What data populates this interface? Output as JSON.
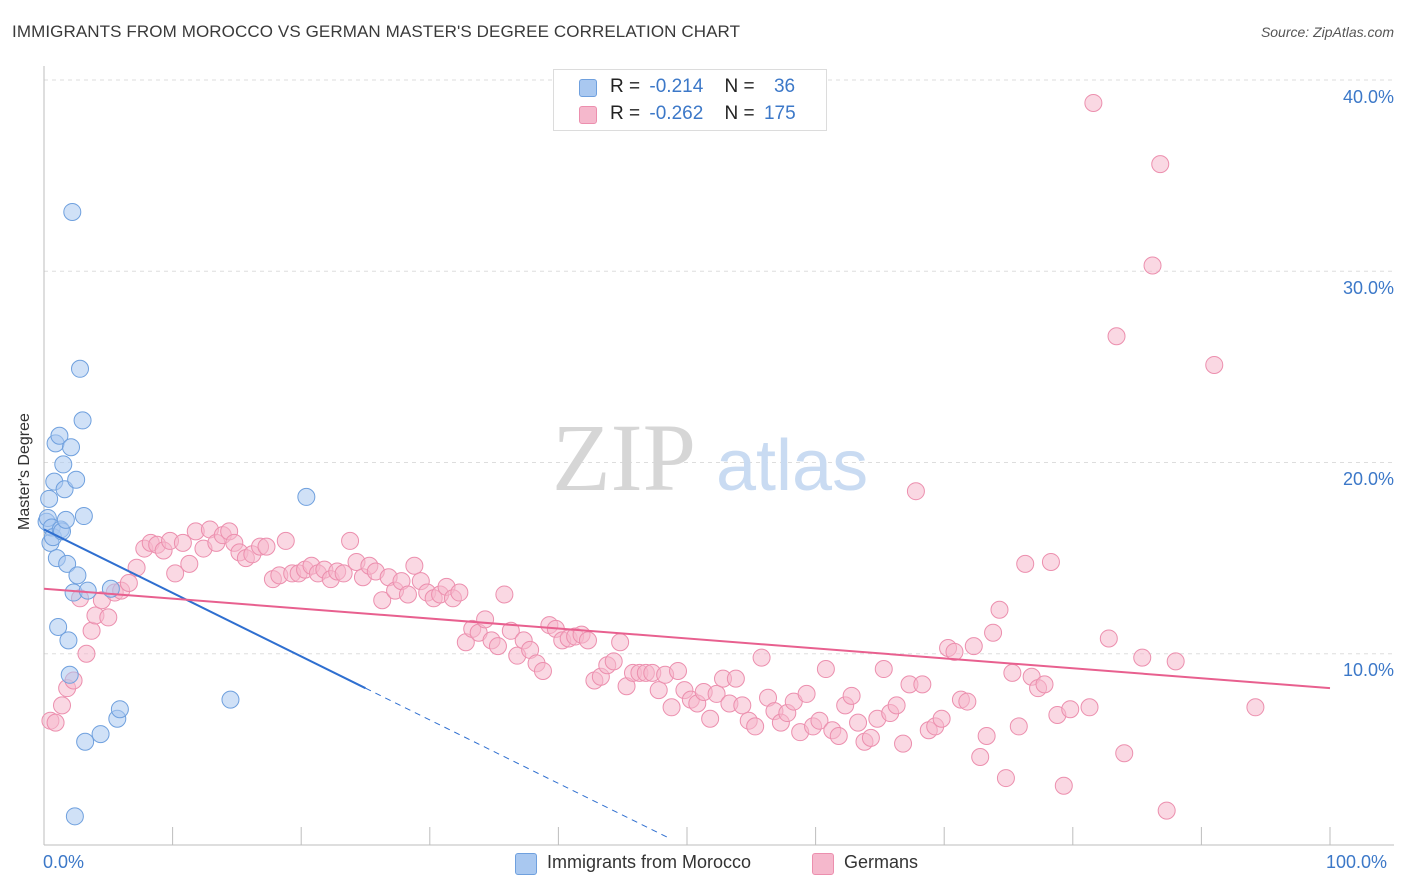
{
  "title": "IMMIGRANTS FROM MOROCCO VS GERMAN MASTER'S DEGREE CORRELATION CHART",
  "source": "Source: ZipAtlas.com",
  "watermark": {
    "zip": "ZIP",
    "atlas": "atlas"
  },
  "legend": {
    "rows": [
      {
        "r_label": "R =",
        "r_value": "-0.214",
        "n_label": "N =",
        "n_value": "36",
        "color": "#a9c8f0"
      },
      {
        "r_label": "R =",
        "r_value": "-0.262",
        "n_label": "N =",
        "n_value": "175",
        "color": "#f5b8cc"
      }
    ]
  },
  "bottom_legend": [
    {
      "label": "Immigrants from Morocco",
      "color": "#a9c8f0"
    },
    {
      "label": "Germans",
      "color": "#f5b8cc"
    }
  ],
  "colors": {
    "blue_fill": "#a9c8f0",
    "blue_stroke": "#6fa0de",
    "blue_line": "#2f6fd0",
    "pink_fill": "#f5b8cc",
    "pink_stroke": "#ec8fae",
    "pink_line": "#e8608f",
    "tick_text": "#3c78c8",
    "grid": "#dddddd"
  },
  "chart_data": {
    "type": "scatter",
    "title": "IMMIGRANTS FROM MOROCCO VS GERMAN MASTER'S DEGREE CORRELATION CHART",
    "xlabel": "",
    "ylabel": "Master's Degree",
    "xlim": [
      0,
      100
    ],
    "ylim": [
      0,
      40
    ],
    "x_tick_labels": [
      "0.0%",
      "100.0%"
    ],
    "y_ticks": [
      10,
      20,
      30,
      40
    ],
    "y_tick_labels": [
      "10.0%",
      "20.0%",
      "30.0%",
      "40.0%"
    ],
    "grid": true,
    "legend_position": "top-center",
    "series": [
      {
        "name": "Immigrants from Morocco",
        "trend": {
          "x0": 0,
          "y0": 16.5,
          "x1": 25,
          "y1": 8.2,
          "dashed_to_x": 48.5
        },
        "points": [
          [
            0.2,
            16.9
          ],
          [
            0.3,
            17.1
          ],
          [
            0.4,
            18.1
          ],
          [
            0.5,
            15.8
          ],
          [
            0.6,
            16.6
          ],
          [
            0.7,
            16.1
          ],
          [
            0.8,
            19.0
          ],
          [
            0.9,
            21.0
          ],
          [
            1.0,
            15.0
          ],
          [
            1.1,
            11.4
          ],
          [
            1.2,
            21.4
          ],
          [
            1.3,
            16.5
          ],
          [
            1.4,
            16.4
          ],
          [
            1.5,
            19.9
          ],
          [
            1.6,
            18.6
          ],
          [
            1.7,
            17.0
          ],
          [
            1.8,
            14.7
          ],
          [
            1.9,
            10.7
          ],
          [
            2.0,
            8.9
          ],
          [
            2.1,
            20.8
          ],
          [
            2.2,
            33.1
          ],
          [
            2.3,
            13.2
          ],
          [
            2.4,
            1.5
          ],
          [
            2.5,
            19.1
          ],
          [
            2.6,
            14.1
          ],
          [
            2.8,
            24.9
          ],
          [
            3.0,
            22.2
          ],
          [
            3.1,
            17.2
          ],
          [
            3.2,
            5.4
          ],
          [
            3.4,
            13.3
          ],
          [
            4.4,
            5.8
          ],
          [
            5.2,
            13.4
          ],
          [
            5.7,
            6.6
          ],
          [
            5.9,
            7.1
          ],
          [
            14.5,
            7.6
          ],
          [
            20.4,
            18.2
          ]
        ]
      },
      {
        "name": "Germans",
        "trend": {
          "x0": 0,
          "y0": 13.4,
          "x1": 100,
          "y1": 8.2
        },
        "points": [
          [
            0.5,
            6.5
          ],
          [
            0.9,
            6.4
          ],
          [
            1.4,
            7.3
          ],
          [
            1.8,
            8.2
          ],
          [
            2.3,
            8.6
          ],
          [
            2.8,
            12.9
          ],
          [
            3.3,
            10.0
          ],
          [
            3.7,
            11.2
          ],
          [
            4.0,
            12.0
          ],
          [
            4.5,
            12.8
          ],
          [
            5.0,
            11.9
          ],
          [
            5.5,
            13.2
          ],
          [
            6.0,
            13.3
          ],
          [
            6.6,
            13.7
          ],
          [
            7.2,
            14.5
          ],
          [
            7.8,
            15.5
          ],
          [
            8.3,
            15.8
          ],
          [
            8.8,
            15.7
          ],
          [
            9.3,
            15.4
          ],
          [
            9.8,
            15.9
          ],
          [
            10.2,
            14.2
          ],
          [
            10.8,
            15.8
          ],
          [
            11.3,
            14.7
          ],
          [
            11.8,
            16.4
          ],
          [
            12.4,
            15.5
          ],
          [
            12.9,
            16.5
          ],
          [
            13.4,
            15.8
          ],
          [
            13.9,
            16.2
          ],
          [
            14.4,
            16.4
          ],
          [
            14.8,
            15.8
          ],
          [
            15.2,
            15.3
          ],
          [
            15.7,
            15.0
          ],
          [
            16.2,
            15.2
          ],
          [
            16.8,
            15.6
          ],
          [
            17.3,
            15.6
          ],
          [
            17.8,
            13.9
          ],
          [
            18.3,
            14.1
          ],
          [
            18.8,
            15.9
          ],
          [
            19.3,
            14.2
          ],
          [
            19.8,
            14.2
          ],
          [
            20.3,
            14.4
          ],
          [
            20.8,
            14.6
          ],
          [
            21.3,
            14.2
          ],
          [
            21.8,
            14.4
          ],
          [
            22.3,
            13.9
          ],
          [
            22.8,
            14.3
          ],
          [
            23.3,
            14.2
          ],
          [
            23.8,
            15.9
          ],
          [
            24.3,
            14.8
          ],
          [
            24.8,
            14.0
          ],
          [
            25.3,
            14.6
          ],
          [
            25.8,
            14.3
          ],
          [
            26.3,
            12.8
          ],
          [
            26.8,
            14.0
          ],
          [
            27.3,
            13.3
          ],
          [
            27.8,
            13.8
          ],
          [
            28.3,
            13.1
          ],
          [
            28.8,
            14.6
          ],
          [
            29.3,
            13.8
          ],
          [
            29.8,
            13.2
          ],
          [
            30.3,
            12.9
          ],
          [
            30.8,
            13.1
          ],
          [
            31.3,
            13.5
          ],
          [
            31.8,
            12.9
          ],
          [
            32.3,
            13.2
          ],
          [
            32.8,
            10.6
          ],
          [
            33.3,
            11.3
          ],
          [
            33.8,
            11.1
          ],
          [
            34.3,
            11.8
          ],
          [
            34.8,
            10.7
          ],
          [
            35.3,
            10.4
          ],
          [
            35.8,
            13.1
          ],
          [
            36.3,
            11.2
          ],
          [
            36.8,
            9.9
          ],
          [
            37.3,
            10.7
          ],
          [
            37.8,
            10.2
          ],
          [
            38.3,
            9.5
          ],
          [
            38.8,
            9.1
          ],
          [
            39.3,
            11.5
          ],
          [
            39.8,
            11.3
          ],
          [
            40.3,
            10.7
          ],
          [
            40.8,
            10.8
          ],
          [
            41.3,
            10.9
          ],
          [
            41.8,
            11.0
          ],
          [
            42.3,
            10.7
          ],
          [
            42.8,
            8.6
          ],
          [
            43.3,
            8.8
          ],
          [
            43.8,
            9.4
          ],
          [
            44.3,
            9.6
          ],
          [
            44.8,
            10.6
          ],
          [
            45.3,
            8.3
          ],
          [
            45.8,
            9.0
          ],
          [
            46.3,
            9.0
          ],
          [
            46.8,
            9.0
          ],
          [
            47.3,
            9.0
          ],
          [
            47.8,
            8.1
          ],
          [
            48.3,
            8.9
          ],
          [
            48.8,
            7.2
          ],
          [
            49.3,
            9.1
          ],
          [
            49.8,
            8.1
          ],
          [
            50.3,
            7.6
          ],
          [
            50.8,
            7.4
          ],
          [
            51.3,
            8.0
          ],
          [
            51.8,
            6.6
          ],
          [
            52.3,
            7.9
          ],
          [
            52.8,
            8.7
          ],
          [
            53.3,
            7.4
          ],
          [
            53.8,
            8.7
          ],
          [
            54.3,
            7.3
          ],
          [
            54.8,
            6.5
          ],
          [
            55.3,
            6.2
          ],
          [
            55.8,
            9.8
          ],
          [
            56.3,
            7.7
          ],
          [
            56.8,
            7.0
          ],
          [
            57.3,
            6.4
          ],
          [
            57.8,
            6.9
          ],
          [
            58.3,
            7.5
          ],
          [
            58.8,
            5.9
          ],
          [
            59.3,
            7.9
          ],
          [
            59.8,
            6.2
          ],
          [
            60.3,
            6.5
          ],
          [
            60.8,
            9.2
          ],
          [
            61.3,
            6.0
          ],
          [
            61.8,
            5.7
          ],
          [
            62.3,
            7.3
          ],
          [
            62.8,
            7.8
          ],
          [
            63.3,
            6.4
          ],
          [
            63.8,
            5.4
          ],
          [
            64.3,
            5.6
          ],
          [
            64.8,
            6.6
          ],
          [
            65.3,
            9.2
          ],
          [
            65.8,
            6.9
          ],
          [
            66.3,
            7.3
          ],
          [
            66.8,
            5.3
          ],
          [
            67.3,
            8.4
          ],
          [
            67.8,
            18.5
          ],
          [
            68.3,
            8.4
          ],
          [
            68.8,
            6.0
          ],
          [
            69.3,
            6.2
          ],
          [
            69.8,
            6.6
          ],
          [
            70.3,
            10.3
          ],
          [
            70.8,
            10.1
          ],
          [
            71.3,
            7.6
          ],
          [
            71.8,
            7.5
          ],
          [
            72.3,
            10.4
          ],
          [
            72.8,
            4.6
          ],
          [
            73.3,
            5.7
          ],
          [
            73.8,
            11.1
          ],
          [
            74.3,
            12.3
          ],
          [
            74.8,
            3.5
          ],
          [
            75.3,
            9.0
          ],
          [
            75.8,
            6.2
          ],
          [
            76.3,
            14.7
          ],
          [
            76.8,
            8.8
          ],
          [
            77.3,
            8.2
          ],
          [
            77.8,
            8.4
          ],
          [
            78.3,
            14.8
          ],
          [
            78.8,
            6.8
          ],
          [
            79.3,
            3.1
          ],
          [
            79.8,
            7.1
          ],
          [
            81.3,
            7.2
          ],
          [
            81.6,
            38.8
          ],
          [
            82.8,
            10.8
          ],
          [
            83.4,
            26.6
          ],
          [
            84.0,
            4.8
          ],
          [
            85.4,
            9.8
          ],
          [
            86.2,
            30.3
          ],
          [
            86.8,
            35.6
          ],
          [
            87.3,
            1.8
          ],
          [
            88.0,
            9.6
          ],
          [
            91.0,
            25.1
          ],
          [
            94.2,
            7.2
          ]
        ]
      }
    ]
  }
}
